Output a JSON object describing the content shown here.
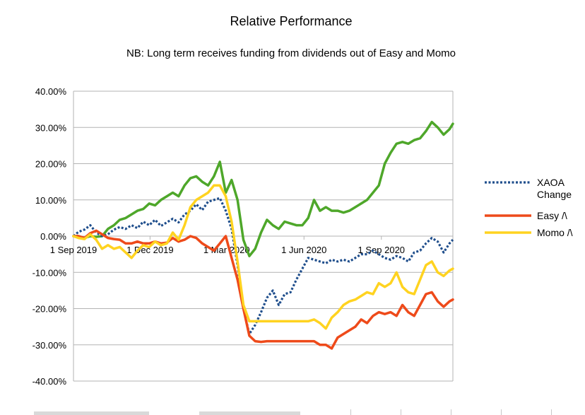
{
  "chart_data": {
    "type": "line",
    "title": "Relative Performance",
    "subtitle": "NB: Long term receives funding from dividends out of Easy and Momo",
    "xlabel": "",
    "ylabel": "",
    "ylim": [
      -0.4,
      0.4
    ],
    "y_ticks": [
      0.4,
      0.3,
      0.2,
      0.1,
      0.0,
      -0.1,
      -0.2,
      -0.3,
      -0.4
    ],
    "y_tick_labels": [
      "40.00%",
      "30.00%",
      "20.00%",
      "10.00%",
      "0.00%",
      "-10.00%",
      "-20.00%",
      "-30.00%",
      "-40.00%"
    ],
    "xlim": [
      "2019-09-01",
      "2020-11-25"
    ],
    "x_ticks": [
      "2019-09-01",
      "2019-12-01",
      "2020-03-01",
      "2020-06-01",
      "2020-09-01"
    ],
    "x_tick_labels": [
      "1 Sep 2019",
      "1 Dec 2019",
      "1 Mar 2020",
      "1 Jun 2020",
      "1 Sep 2020"
    ],
    "grid": "horizontal",
    "legend_position": "right",
    "series": [
      {
        "name": "XAOA Change",
        "color": "#1f4e8c",
        "style": "dotted",
        "legend_lines": [
          "XAOA",
          "Change"
        ],
        "points": [
          [
            "2019-09-01",
            0.0
          ],
          [
            "2019-09-07",
            0.012
          ],
          [
            "2019-09-14",
            0.018
          ],
          [
            "2019-09-21",
            0.03
          ],
          [
            "2019-09-28",
            0.01
          ],
          [
            "2019-10-05",
            0.0
          ],
          [
            "2019-10-12",
            0.005
          ],
          [
            "2019-10-19",
            0.018
          ],
          [
            "2019-10-26",
            0.025
          ],
          [
            "2019-11-02",
            0.02
          ],
          [
            "2019-11-09",
            0.03
          ],
          [
            "2019-11-16",
            0.022
          ],
          [
            "2019-11-23",
            0.04
          ],
          [
            "2019-11-30",
            0.03
          ],
          [
            "2019-12-07",
            0.045
          ],
          [
            "2019-12-14",
            0.028
          ],
          [
            "2019-12-21",
            0.038
          ],
          [
            "2019-12-28",
            0.048
          ],
          [
            "2020-01-04",
            0.038
          ],
          [
            "2020-01-11",
            0.06
          ],
          [
            "2020-01-18",
            0.07
          ],
          [
            "2020-01-25",
            0.088
          ],
          [
            "2020-02-01",
            0.072
          ],
          [
            "2020-02-08",
            0.095
          ],
          [
            "2020-02-15",
            0.1
          ],
          [
            "2020-02-22",
            0.105
          ],
          [
            "2020-02-29",
            0.07
          ],
          [
            "2020-03-07",
            0.02
          ],
          [
            "2020-03-14",
            -0.08
          ],
          [
            "2020-03-21",
            -0.2
          ],
          [
            "2020-03-28",
            -0.27
          ],
          [
            "2020-04-04",
            -0.245
          ],
          [
            "2020-04-11",
            -0.21
          ],
          [
            "2020-04-18",
            -0.17
          ],
          [
            "2020-04-25",
            -0.15
          ],
          [
            "2020-05-02",
            -0.19
          ],
          [
            "2020-05-09",
            -0.16
          ],
          [
            "2020-05-16",
            -0.155
          ],
          [
            "2020-05-23",
            -0.12
          ],
          [
            "2020-05-30",
            -0.09
          ],
          [
            "2020-06-06",
            -0.06
          ],
          [
            "2020-06-13",
            -0.065
          ],
          [
            "2020-06-20",
            -0.07
          ],
          [
            "2020-06-27",
            -0.075
          ],
          [
            "2020-07-04",
            -0.065
          ],
          [
            "2020-07-11",
            -0.07
          ],
          [
            "2020-07-18",
            -0.065
          ],
          [
            "2020-07-25",
            -0.07
          ],
          [
            "2020-08-01",
            -0.06
          ],
          [
            "2020-08-08",
            -0.05
          ],
          [
            "2020-08-15",
            -0.05
          ],
          [
            "2020-08-22",
            -0.04
          ],
          [
            "2020-08-29",
            -0.05
          ],
          [
            "2020-09-05",
            -0.06
          ],
          [
            "2020-09-12",
            -0.065
          ],
          [
            "2020-09-19",
            -0.055
          ],
          [
            "2020-09-26",
            -0.06
          ],
          [
            "2020-10-03",
            -0.07
          ],
          [
            "2020-10-10",
            -0.045
          ],
          [
            "2020-10-17",
            -0.04
          ],
          [
            "2020-10-24",
            -0.02
          ],
          [
            "2020-10-31",
            -0.005
          ],
          [
            "2020-11-07",
            -0.015
          ],
          [
            "2020-11-14",
            -0.045
          ],
          [
            "2020-11-21",
            -0.02
          ],
          [
            "2020-11-25",
            -0.01
          ]
        ]
      },
      {
        "name": "Easy /\\",
        "color": "#ee4a1a",
        "style": "solid",
        "legend_lines": [
          "Easy /\\"
        ],
        "points": [
          [
            "2019-09-01",
            0.0
          ],
          [
            "2019-09-07",
            0.0
          ],
          [
            "2019-09-14",
            -0.005
          ],
          [
            "2019-09-21",
            0.008
          ],
          [
            "2019-09-28",
            0.015
          ],
          [
            "2019-10-05",
            0.005
          ],
          [
            "2019-10-12",
            -0.005
          ],
          [
            "2019-10-19",
            -0.008
          ],
          [
            "2019-10-26",
            -0.01
          ],
          [
            "2019-11-02",
            -0.02
          ],
          [
            "2019-11-09",
            -0.02
          ],
          [
            "2019-11-16",
            -0.015
          ],
          [
            "2019-11-23",
            -0.02
          ],
          [
            "2019-11-30",
            -0.02
          ],
          [
            "2019-12-07",
            -0.015
          ],
          [
            "2019-12-14",
            -0.02
          ],
          [
            "2019-12-21",
            -0.018
          ],
          [
            "2019-12-28",
            -0.005
          ],
          [
            "2020-01-04",
            -0.015
          ],
          [
            "2020-01-11",
            -0.01
          ],
          [
            "2020-01-18",
            0.0
          ],
          [
            "2020-01-25",
            -0.005
          ],
          [
            "2020-02-01",
            -0.02
          ],
          [
            "2020-02-08",
            -0.03
          ],
          [
            "2020-02-15",
            -0.04
          ],
          [
            "2020-02-22",
            -0.02
          ],
          [
            "2020-02-29",
            0.0
          ],
          [
            "2020-03-07",
            -0.06
          ],
          [
            "2020-03-14",
            -0.12
          ],
          [
            "2020-03-21",
            -0.2
          ],
          [
            "2020-03-28",
            -0.275
          ],
          [
            "2020-04-04",
            -0.29
          ],
          [
            "2020-04-11",
            -0.292
          ],
          [
            "2020-04-18",
            -0.29
          ],
          [
            "2020-04-25",
            -0.29
          ],
          [
            "2020-05-02",
            -0.29
          ],
          [
            "2020-05-09",
            -0.29
          ],
          [
            "2020-05-16",
            -0.29
          ],
          [
            "2020-05-23",
            -0.29
          ],
          [
            "2020-05-30",
            -0.29
          ],
          [
            "2020-06-06",
            -0.29
          ],
          [
            "2020-06-13",
            -0.29
          ],
          [
            "2020-06-20",
            -0.3
          ],
          [
            "2020-06-27",
            -0.3
          ],
          [
            "2020-07-04",
            -0.31
          ],
          [
            "2020-07-11",
            -0.28
          ],
          [
            "2020-07-18",
            -0.27
          ],
          [
            "2020-07-25",
            -0.26
          ],
          [
            "2020-08-01",
            -0.25
          ],
          [
            "2020-08-08",
            -0.23
          ],
          [
            "2020-08-15",
            -0.24
          ],
          [
            "2020-08-22",
            -0.22
          ],
          [
            "2020-08-29",
            -0.21
          ],
          [
            "2020-09-05",
            -0.215
          ],
          [
            "2020-09-12",
            -0.21
          ],
          [
            "2020-09-19",
            -0.22
          ],
          [
            "2020-09-26",
            -0.19
          ],
          [
            "2020-10-03",
            -0.21
          ],
          [
            "2020-10-10",
            -0.22
          ],
          [
            "2020-10-17",
            -0.19
          ],
          [
            "2020-10-24",
            -0.16
          ],
          [
            "2020-10-31",
            -0.155
          ],
          [
            "2020-11-07",
            -0.18
          ],
          [
            "2020-11-14",
            -0.195
          ],
          [
            "2020-11-21",
            -0.18
          ],
          [
            "2020-11-25",
            -0.175
          ]
        ]
      },
      {
        "name": "Momo /\\",
        "color": "#ffd320",
        "style": "solid",
        "legend_lines": [
          "Momo /\\"
        ],
        "points": [
          [
            "2019-09-01",
            0.0
          ],
          [
            "2019-09-07",
            -0.005
          ],
          [
            "2019-09-14",
            -0.008
          ],
          [
            "2019-09-21",
            0.005
          ],
          [
            "2019-09-28",
            -0.01
          ],
          [
            "2019-10-05",
            -0.035
          ],
          [
            "2019-10-12",
            -0.025
          ],
          [
            "2019-10-19",
            -0.035
          ],
          [
            "2019-10-26",
            -0.03
          ],
          [
            "2019-11-02",
            -0.045
          ],
          [
            "2019-11-09",
            -0.06
          ],
          [
            "2019-11-16",
            -0.04
          ],
          [
            "2019-11-23",
            -0.025
          ],
          [
            "2019-11-30",
            -0.03
          ],
          [
            "2019-12-07",
            -0.015
          ],
          [
            "2019-12-14",
            -0.025
          ],
          [
            "2019-12-21",
            -0.02
          ],
          [
            "2019-12-28",
            0.01
          ],
          [
            "2020-01-04",
            -0.01
          ],
          [
            "2020-01-11",
            0.03
          ],
          [
            "2020-01-18",
            0.08
          ],
          [
            "2020-01-25",
            0.1
          ],
          [
            "2020-02-01",
            0.11
          ],
          [
            "2020-02-08",
            0.12
          ],
          [
            "2020-02-15",
            0.14
          ],
          [
            "2020-02-22",
            0.14
          ],
          [
            "2020-02-29",
            0.11
          ],
          [
            "2020-03-07",
            0.04
          ],
          [
            "2020-03-14",
            -0.07
          ],
          [
            "2020-03-21",
            -0.19
          ],
          [
            "2020-03-28",
            -0.235
          ],
          [
            "2020-04-04",
            -0.235
          ],
          [
            "2020-04-11",
            -0.235
          ],
          [
            "2020-04-18",
            -0.235
          ],
          [
            "2020-04-25",
            -0.235
          ],
          [
            "2020-05-02",
            -0.235
          ],
          [
            "2020-05-09",
            -0.235
          ],
          [
            "2020-05-16",
            -0.235
          ],
          [
            "2020-05-23",
            -0.235
          ],
          [
            "2020-05-30",
            -0.235
          ],
          [
            "2020-06-06",
            -0.235
          ],
          [
            "2020-06-13",
            -0.23
          ],
          [
            "2020-06-20",
            -0.24
          ],
          [
            "2020-06-27",
            -0.255
          ],
          [
            "2020-07-04",
            -0.225
          ],
          [
            "2020-07-11",
            -0.21
          ],
          [
            "2020-07-18",
            -0.19
          ],
          [
            "2020-07-25",
            -0.18
          ],
          [
            "2020-08-01",
            -0.175
          ],
          [
            "2020-08-08",
            -0.165
          ],
          [
            "2020-08-15",
            -0.155
          ],
          [
            "2020-08-22",
            -0.16
          ],
          [
            "2020-08-29",
            -0.13
          ],
          [
            "2020-09-05",
            -0.14
          ],
          [
            "2020-09-12",
            -0.13
          ],
          [
            "2020-09-19",
            -0.1
          ],
          [
            "2020-09-26",
            -0.14
          ],
          [
            "2020-10-03",
            -0.155
          ],
          [
            "2020-10-10",
            -0.16
          ],
          [
            "2020-10-17",
            -0.12
          ],
          [
            "2020-10-24",
            -0.08
          ],
          [
            "2020-10-31",
            -0.07
          ],
          [
            "2020-11-07",
            -0.1
          ],
          [
            "2020-11-14",
            -0.11
          ],
          [
            "2020-11-21",
            -0.095
          ],
          [
            "2020-11-25",
            -0.09
          ]
        ]
      },
      {
        "name": "",
        "color": "#4ea72a",
        "style": "solid",
        "legend_lines": [],
        "points": [
          [
            "2019-09-01",
            0.0
          ],
          [
            "2019-09-07",
            0.0
          ],
          [
            "2019-09-14",
            -0.005
          ],
          [
            "2019-09-21",
            0.0
          ],
          [
            "2019-09-28",
            -0.002
          ],
          [
            "2019-10-05",
            0.0
          ],
          [
            "2019-10-12",
            0.02
          ],
          [
            "2019-10-19",
            0.03
          ],
          [
            "2019-10-26",
            0.045
          ],
          [
            "2019-11-02",
            0.05
          ],
          [
            "2019-11-09",
            0.06
          ],
          [
            "2019-11-16",
            0.07
          ],
          [
            "2019-11-23",
            0.075
          ],
          [
            "2019-11-30",
            0.09
          ],
          [
            "2019-12-07",
            0.085
          ],
          [
            "2019-12-14",
            0.1
          ],
          [
            "2019-12-21",
            0.11
          ],
          [
            "2019-12-28",
            0.12
          ],
          [
            "2020-01-04",
            0.11
          ],
          [
            "2020-01-11",
            0.14
          ],
          [
            "2020-01-18",
            0.16
          ],
          [
            "2020-01-25",
            0.165
          ],
          [
            "2020-02-01",
            0.15
          ],
          [
            "2020-02-08",
            0.14
          ],
          [
            "2020-02-15",
            0.165
          ],
          [
            "2020-02-22",
            0.205
          ],
          [
            "2020-02-29",
            0.12
          ],
          [
            "2020-03-07",
            0.155
          ],
          [
            "2020-03-14",
            0.1
          ],
          [
            "2020-03-21",
            -0.01
          ],
          [
            "2020-03-28",
            -0.055
          ],
          [
            "2020-04-04",
            -0.035
          ],
          [
            "2020-04-11",
            0.01
          ],
          [
            "2020-04-18",
            0.045
          ],
          [
            "2020-04-25",
            0.03
          ],
          [
            "2020-05-02",
            0.02
          ],
          [
            "2020-05-09",
            0.04
          ],
          [
            "2020-05-16",
            0.035
          ],
          [
            "2020-05-23",
            0.03
          ],
          [
            "2020-05-30",
            0.03
          ],
          [
            "2020-06-06",
            0.05
          ],
          [
            "2020-06-13",
            0.1
          ],
          [
            "2020-06-20",
            0.07
          ],
          [
            "2020-06-27",
            0.08
          ],
          [
            "2020-07-04",
            0.07
          ],
          [
            "2020-07-11",
            0.07
          ],
          [
            "2020-07-18",
            0.065
          ],
          [
            "2020-07-25",
            0.07
          ],
          [
            "2020-08-01",
            0.08
          ],
          [
            "2020-08-08",
            0.09
          ],
          [
            "2020-08-15",
            0.1
          ],
          [
            "2020-08-22",
            0.12
          ],
          [
            "2020-08-29",
            0.14
          ],
          [
            "2020-09-05",
            0.2
          ],
          [
            "2020-09-12",
            0.23
          ],
          [
            "2020-09-19",
            0.255
          ],
          [
            "2020-09-26",
            0.26
          ],
          [
            "2020-10-03",
            0.255
          ],
          [
            "2020-10-10",
            0.265
          ],
          [
            "2020-10-17",
            0.27
          ],
          [
            "2020-10-24",
            0.29
          ],
          [
            "2020-10-31",
            0.315
          ],
          [
            "2020-11-07",
            0.3
          ],
          [
            "2020-11-14",
            0.28
          ],
          [
            "2020-11-21",
            0.295
          ],
          [
            "2020-11-25",
            0.31
          ]
        ]
      }
    ]
  }
}
